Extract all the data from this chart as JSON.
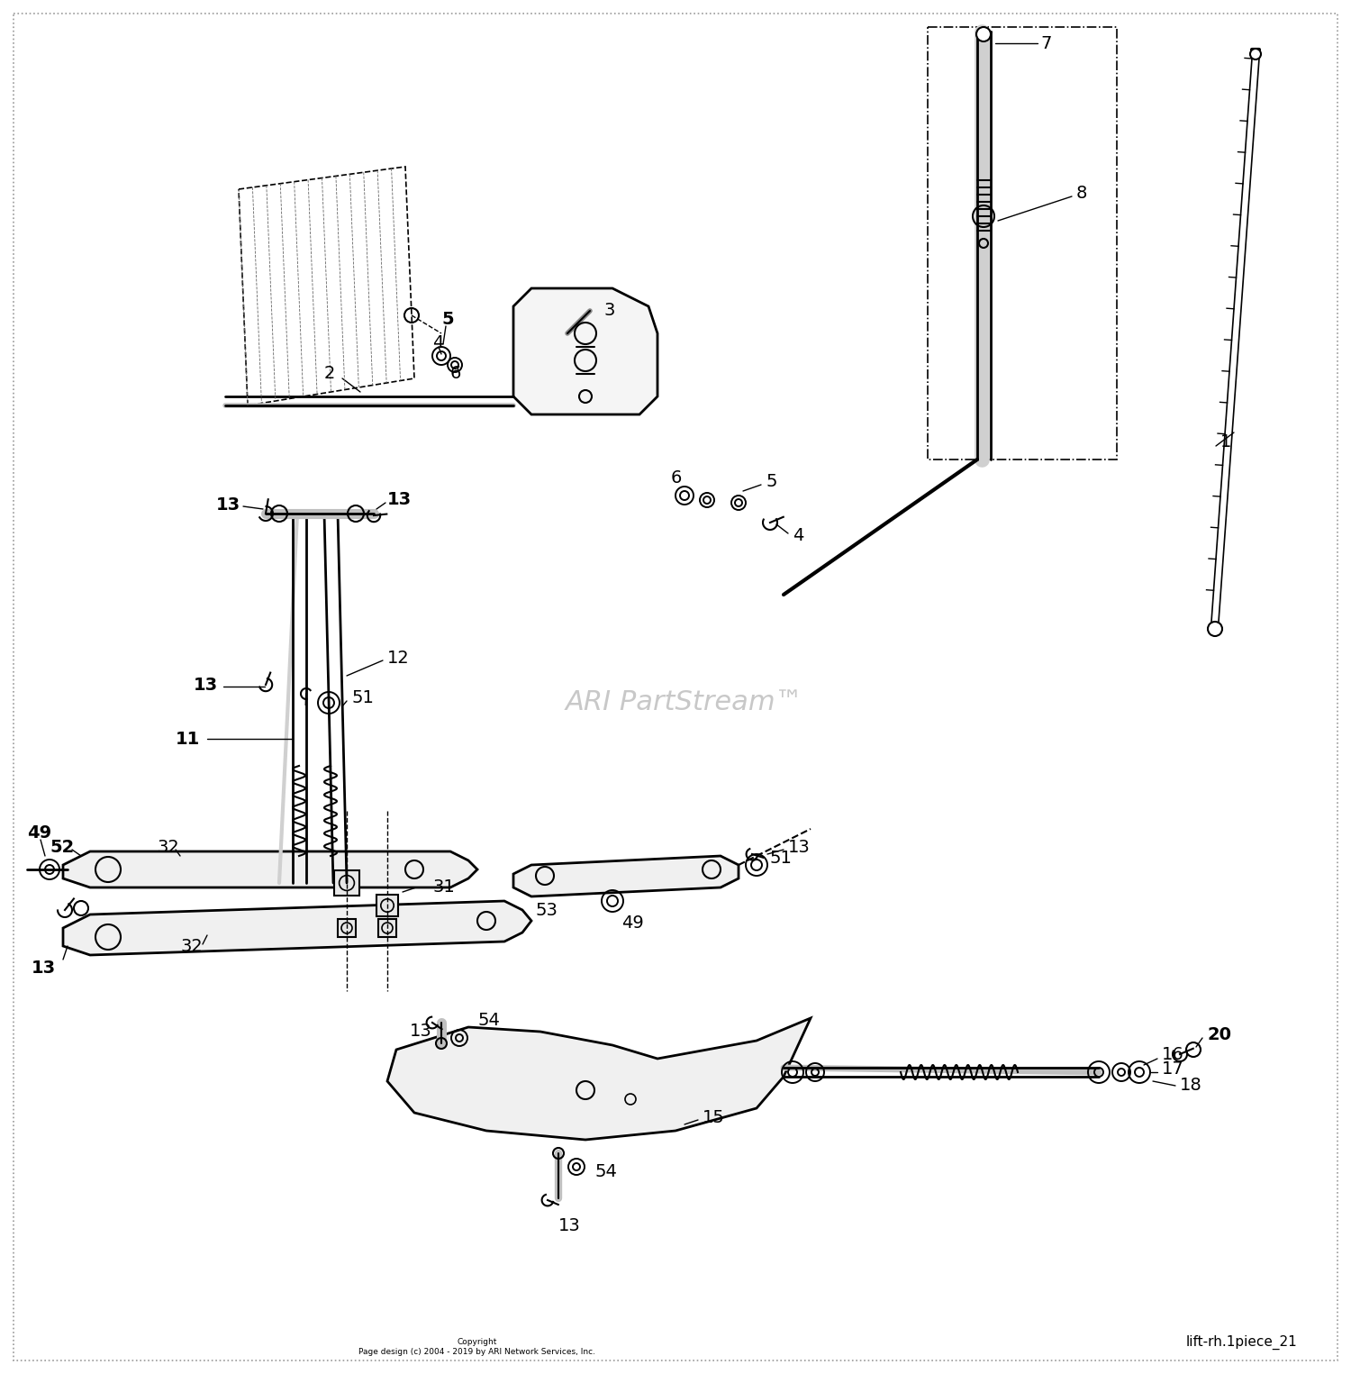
{
  "bg_color": "#ffffff",
  "watermark_text": "ARI PartStream™",
  "watermark_color": "#bbbbbb",
  "watermark_fontsize": 22,
  "copyright_text": "Copyright\nPage design (c) 2004 - 2019 by ARI Network Services, Inc.",
  "footer_text": "lift-rh.1piece_21",
  "border_color": "#aaaaaa",
  "line_color": "#000000",
  "label_fontsize": 14
}
